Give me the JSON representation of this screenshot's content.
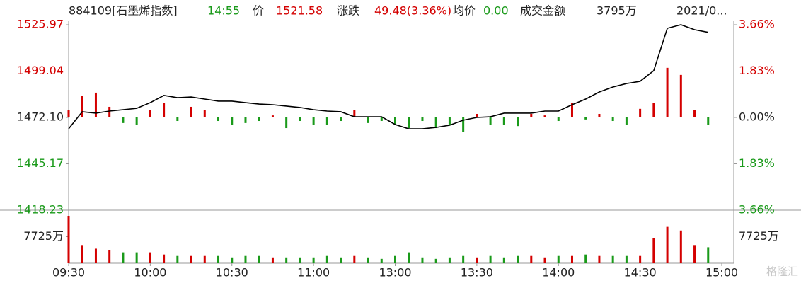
{
  "chart_data": {
    "type": "line",
    "header": [
      "884109[石墨烯指数]",
      "14:55",
      "价",
      "1521.58",
      "涨跌",
      "49.48(3.36%)",
      "均价",
      "0.00",
      "成交金额",
      "3795万",
      "2021/0..."
    ],
    "header_colors": [
      "#222",
      "#1a9a1a",
      "#222",
      "#d40000",
      "#222",
      "#d40000",
      "#222",
      "#1a9a1a",
      "#222",
      "#222",
      "#222"
    ],
    "xlim": [
      0,
      240
    ],
    "xticks": [
      {
        "value": 0,
        "label": "09:30"
      },
      {
        "value": 30,
        "label": "10:00"
      },
      {
        "value": 60,
        "label": "10:30"
      },
      {
        "value": 90,
        "label": "11:00"
      },
      {
        "value": 120,
        "label": "13:00"
      },
      {
        "value": 150,
        "label": "13:30"
      },
      {
        "value": 180,
        "label": "14:00"
      },
      {
        "value": 210,
        "label": "14:30"
      },
      {
        "value": 240,
        "label": "15:00"
      }
    ],
    "ylim": [
      1418.23,
      1525.97
    ],
    "yticks": [
      1418.23,
      1445.17,
      {
        "value": 1472.1,
        "label": "1472.10"
      },
      1499.04,
      1525.97
    ],
    "y2lim": [
      -3.66,
      3.66
    ],
    "y2ticks": [
      {
        "value": -3.66,
        "label": "3.66%"
      },
      {
        "value": -1.83,
        "label": "1.83%"
      },
      {
        "value": 0,
        "label": "0.00%"
      },
      {
        "value": 1.83,
        "label": "1.83%"
      },
      {
        "value": 3.66,
        "label": "3.66%"
      }
    ],
    "up_color": "#d40000",
    "down_color": "#1a9a1a",
    "x": [
      0,
      5,
      10,
      15,
      20,
      25,
      30,
      35,
      40,
      45,
      50,
      55,
      60,
      65,
      70,
      75,
      80,
      85,
      90,
      95,
      100,
      105,
      110,
      115,
      120,
      125,
      130,
      135,
      140,
      145,
      150,
      155,
      160,
      165,
      170,
      175,
      180,
      185,
      190,
      195,
      200,
      205,
      210,
      215,
      220,
      225,
      230,
      235
    ],
    "series": [
      {
        "type": "line",
        "color": "#000000",
        "values": [
          1465.5,
          1475.4,
          1474.6,
          1475.8,
          1476.6,
          1477.4,
          1480.7,
          1484.9,
          1483.6,
          1484.0,
          1482.8,
          1481.6,
          1481.6,
          1480.7,
          1479.9,
          1479.5,
          1478.7,
          1477.9,
          1476.6,
          1475.8,
          1475.4,
          1472.5,
          1472.5,
          1472.5,
          1468.0,
          1465.5,
          1465.5,
          1466.3,
          1467.6,
          1470.5,
          1472.1,
          1472.5,
          1474.6,
          1474.6,
          1474.6,
          1475.8,
          1475.8,
          1479.5,
          1482.8,
          1486.9,
          1489.8,
          1491.8,
          1493.1,
          1499.3,
          1523.9,
          1525.97,
          1523.1,
          1521.58
        ]
      },
      {
        "type": "bar",
        "axis": "y2",
        "values": [
          0.28,
          0.84,
          0.98,
          0.42,
          -0.22,
          -0.28,
          0.28,
          0.56,
          -0.14,
          0.42,
          0.28,
          -0.14,
          -0.28,
          -0.22,
          -0.14,
          0.08,
          -0.42,
          -0.14,
          -0.28,
          -0.28,
          -0.14,
          0.28,
          -0.22,
          -0.14,
          -0.28,
          -0.42,
          -0.14,
          -0.42,
          -0.28,
          -0.56,
          0.14,
          -0.28,
          -0.28,
          -0.34,
          0.14,
          0.08,
          -0.14,
          0.56,
          -0.08,
          0.14,
          -0.14,
          -0.28,
          0.34,
          0.56,
          1.96,
          1.68,
          0.28,
          -0.28
        ]
      }
    ],
    "volume": {
      "ylim": [
        0,
        15450
      ],
      "yticks": [
        {
          "value": 7725,
          "label": "7725万"
        }
      ],
      "values": [
        13754,
        5290,
        4232,
        3809,
        3174,
        3174,
        3174,
        2539,
        2116,
        2116,
        2116,
        2116,
        1693,
        2116,
        2116,
        1693,
        1693,
        1693,
        1693,
        2116,
        1693,
        2116,
        1693,
        1270,
        2116,
        3174,
        1693,
        1270,
        1693,
        2116,
        1693,
        2116,
        1693,
        2116,
        2116,
        1693,
        2116,
        2116,
        2539,
        2116,
        2116,
        2116,
        2116,
        7406,
        10580,
        9522,
        5290,
        4655
      ]
    },
    "watermark": "格隆汇"
  }
}
